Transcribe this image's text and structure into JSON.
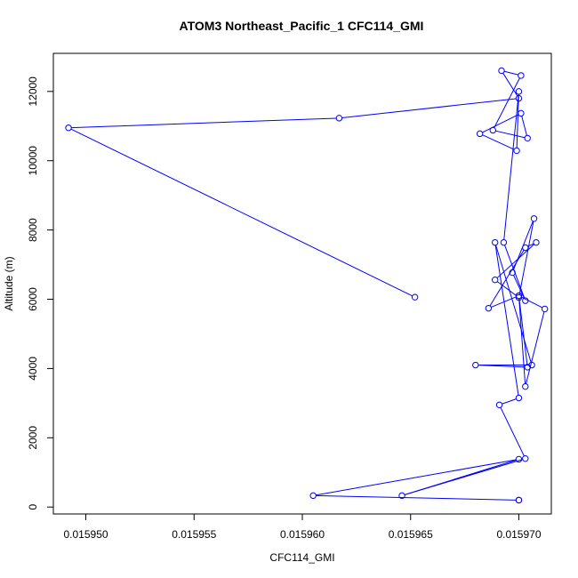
{
  "chart_data": {
    "type": "line",
    "title": "ATOM3 Northeast_Pacific_1 CFC114_GMI",
    "xlabel": "CFC114_GMI",
    "ylabel": "Altitude (m)",
    "xlim": [
      0.0159485,
      0.0159715
    ],
    "ylim": [
      -200,
      13100
    ],
    "xticks": [
      0.01595,
      0.015955,
      0.01596,
      0.015965,
      0.01597
    ],
    "xtick_labels": [
      "0.015950",
      "0.015955",
      "0.015960",
      "0.015965",
      "0.015970"
    ],
    "yticks": [
      0,
      2000,
      4000,
      6000,
      8000,
      10000,
      12000
    ],
    "ytick_labels": [
      "0",
      "2000",
      "4000",
      "6000",
      "8000",
      "10000",
      "12000"
    ],
    "grid": false,
    "legend": "none",
    "markers": "open-circle",
    "color": "#0000ff",
    "series": [
      {
        "x": [
          0.01597,
          0.01597,
          0.0159605,
          0.01597,
          0.0159646,
          0.0159703,
          0.0159691,
          0.01597,
          0.0159689,
          0.0159706,
          0.015968,
          0.0159704,
          0.01597,
          0.0159703,
          0.0159712,
          0.01597,
          0.0159686,
          0.0159703,
          0.0159708,
          0.0159689,
          0.01597,
          0.0159707,
          0.0159697,
          0.0159703,
          0.0159693,
          0.01597,
          0.0159699,
          0.0159682,
          0.0159701,
          0.0159704,
          0.0159688,
          0.0159701,
          0.0159692,
          0.01597,
          0.0159617,
          0.0159492,
          0.0159652
        ],
        "y": [
          200,
          200,
          330,
          1380,
          330,
          1400,
          2950,
          3150,
          7640,
          4100,
          4100,
          4040,
          6100,
          3480,
          5720,
          6100,
          5740,
          7490,
          7640,
          6560,
          6050,
          8330,
          6770,
          5960,
          7640,
          12000,
          10290,
          10780,
          11370,
          10650,
          10880,
          12460,
          12600,
          11800,
          11230,
          10950,
          6060
        ]
      }
    ]
  }
}
